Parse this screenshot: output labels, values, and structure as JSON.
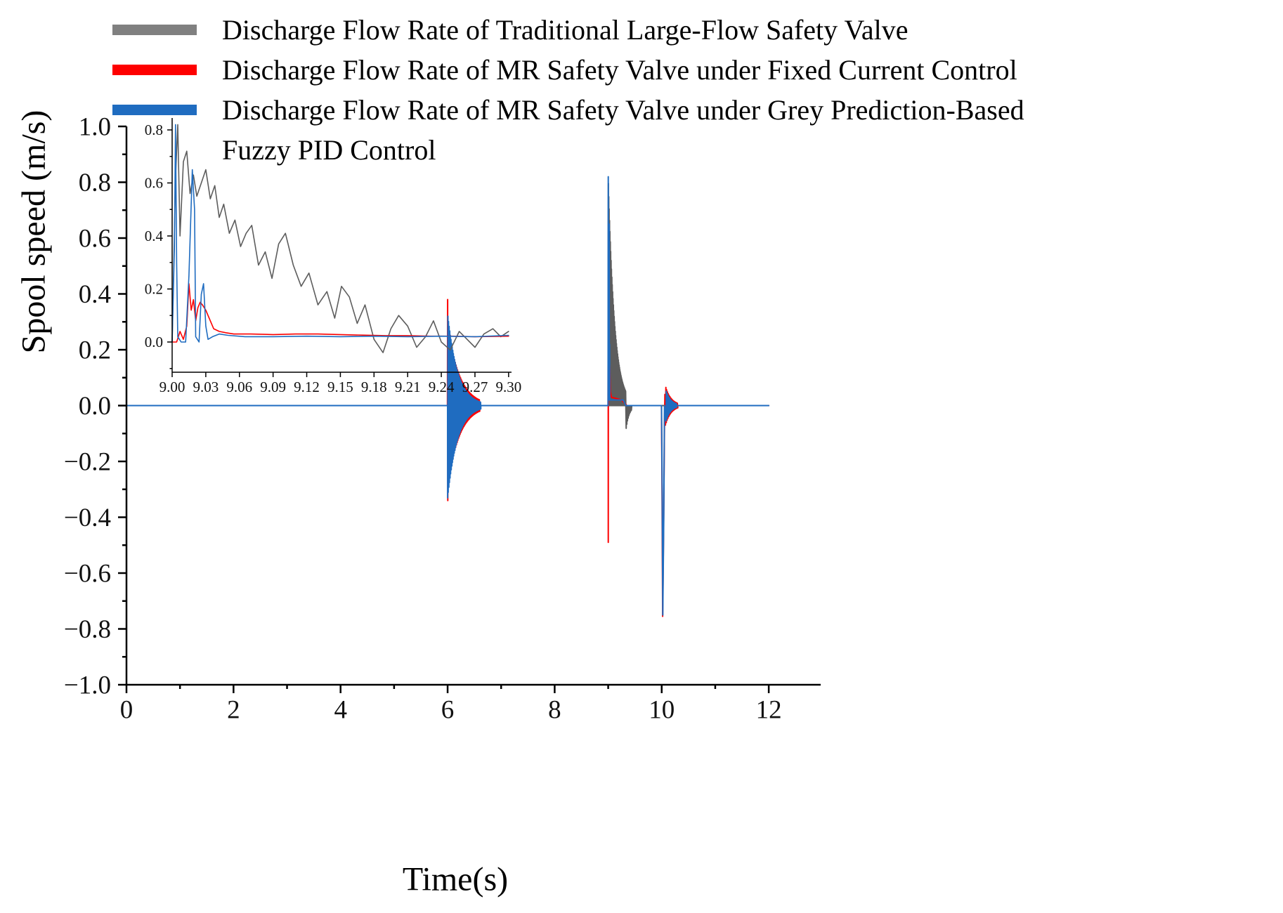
{
  "chart_data": {
    "type": "line",
    "title": "",
    "xlabel": "Time(s)",
    "ylabel": "Spool speed (m/s)",
    "legend": {
      "position": "top-left",
      "items": [
        {
          "name": "traditional-large-flow",
          "swatch_color": "#808080",
          "lines": [
            "Discharge Flow Rate of Traditional Large-Flow Safety Valve"
          ]
        },
        {
          "name": "mr-fixed-current",
          "swatch_color": "#fe0000",
          "lines": [
            "Discharge Flow Rate of MR Safety Valve under Fixed Current Control"
          ]
        },
        {
          "name": "mr-grey-fuzzy-pid",
          "swatch_color": "#1f6cc0",
          "lines": [
            "Discharge Flow Rate of MR Safety Valve under Grey Prediction-Based",
            "Fuzzy PID Control"
          ]
        }
      ]
    },
    "main": {
      "xlim": [
        0,
        12.97
      ],
      "ylim": [
        -1.0,
        1.0
      ],
      "xticks": {
        "values": [
          0,
          2,
          4,
          6,
          8,
          10,
          12
        ],
        "labels": [
          "0",
          "2",
          "4",
          "6",
          "8",
          "10",
          "12"
        ],
        "minor_step": 1
      },
      "yticks": {
        "values": [
          -1.0,
          -0.8,
          -0.6,
          -0.4,
          -0.2,
          0.0,
          0.2,
          0.4,
          0.6,
          0.8,
          1.0
        ],
        "labels": [
          "−1.0",
          "−0.8",
          "−0.6",
          "−0.4",
          "−0.2",
          "0.0",
          "0.2",
          "0.4",
          "0.6",
          "0.8",
          "1.0"
        ],
        "minor_step": 0.1
      },
      "series": [
        {
          "name": "traditional-large-flow",
          "color": "#5d5d5d",
          "width": 2,
          "segments": [
            {
              "type": "points",
              "pts": [
                [
                  0,
                  0
                ],
                [
                  8.997,
                  0
                ]
              ]
            },
            {
              "type": "osc",
              "t0": 9.0,
              "t1": 9.33,
              "amp0": 0.82,
              "amp1": 0.05,
              "cycles": 46,
              "mode": "pos"
            },
            {
              "type": "osc",
              "t0": 9.33,
              "t1": 9.44,
              "amp0": 0.09,
              "amp1": 0.015,
              "cycles": 9,
              "mode": "neg"
            },
            {
              "type": "points",
              "pts": [
                [
                  9.44,
                  0
                ],
                [
                  12,
                  0
                ]
              ]
            }
          ]
        },
        {
          "name": "mr-fixed-current",
          "color": "#fe0000",
          "width": 2,
          "segments": [
            {
              "type": "points",
              "pts": [
                [
                  0,
                  0
                ],
                [
                  5.997,
                  0
                ],
                [
                  6.0,
                  0.38
                ],
                [
                  6.003,
                  -0.34
                ],
                [
                  6.007,
                  0.3
                ]
              ]
            },
            {
              "type": "osc",
              "t0": 6.01,
              "t1": 6.6,
              "amp0": 0.28,
              "amp1": 0.02,
              "cycles": 42,
              "mode": "sym"
            },
            {
              "type": "points",
              "pts": [
                [
                  6.6,
                  0
                ],
                [
                  8.997,
                  0
                ],
                [
                  9.0,
                  0.3
                ],
                [
                  9.001,
                  -0.49
                ],
                [
                  9.003,
                  0
                ],
                [
                  9.013,
                  0.05
                ],
                [
                  9.016,
                  0.22
                ],
                [
                  9.02,
                  0.1
                ],
                [
                  9.025,
                  0.15
                ],
                [
                  9.03,
                  0.13
                ],
                [
                  9.04,
                  0.05
                ],
                [
                  9.06,
                  0.03
                ],
                [
                  9.25,
                  0.02
                ],
                [
                  9.3,
                  0.01
                ],
                [
                  9.35,
                  0
                ],
                [
                  9.995,
                  0
                ],
                [
                  10.005,
                  -0.25
                ],
                [
                  10.018,
                  -0.755
                ],
                [
                  10.035,
                  -0.45
                ],
                [
                  10.05,
                  -0.1
                ],
                [
                  10.06,
                  0.04
                ]
              ]
            },
            {
              "type": "osc",
              "t0": 10.07,
              "t1": 10.3,
              "amp0": 0.07,
              "amp1": 0.008,
              "cycles": 15,
              "mode": "sym"
            },
            {
              "type": "points",
              "pts": [
                [
                  10.3,
                  0
                ],
                [
                  12,
                  0
                ]
              ]
            }
          ]
        },
        {
          "name": "mr-grey-fuzzy-pid",
          "color": "#1f6cc0",
          "width": 2,
          "segments": [
            {
              "type": "points",
              "pts": [
                [
                  0,
                  0
                ],
                [
                  5.999,
                  0
                ]
              ]
            },
            {
              "type": "osc",
              "t0": 6.0,
              "t1": 6.62,
              "amp0": 0.33,
              "amp1": 0.012,
              "cycles": 55,
              "mode": "sym"
            },
            {
              "type": "points",
              "pts": [
                [
                  6.62,
                  0
                ],
                [
                  8.998,
                  0
                ],
                [
                  9.002,
                  0.82
                ],
                [
                  9.004,
                  0.02
                ],
                [
                  9.015,
                  0.02
                ],
                [
                  9.018,
                  0.65
                ],
                [
                  9.021,
                  0.02
                ],
                [
                  9.026,
                  0.22
                ],
                [
                  9.03,
                  0.02
                ],
                [
                  9.28,
                  0.02
                ],
                [
                  9.33,
                  0
                ],
                [
                  9.996,
                  0
                ],
                [
                  10.008,
                  -0.3
                ],
                [
                  10.02,
                  -0.75
                ],
                [
                  10.038,
                  -0.4
                ],
                [
                  10.052,
                  0
                ]
              ]
            },
            {
              "type": "osc",
              "t0": 10.08,
              "t1": 10.28,
              "amp0": 0.055,
              "amp1": 0.006,
              "cycles": 16,
              "mode": "sym"
            },
            {
              "type": "points",
              "pts": [
                [
                  10.28,
                  0
                ],
                [
                  12,
                  0
                ]
              ]
            }
          ]
        }
      ]
    },
    "inset": {
      "xlim": [
        9.0,
        9.3026
      ],
      "ylim": [
        -0.114,
        0.845
      ],
      "xticks": {
        "values": [
          9.0,
          9.03,
          9.06,
          9.09,
          9.12,
          9.15,
          9.18,
          9.21,
          9.24,
          9.27,
          9.3
        ],
        "labels": [
          "9.00",
          "9.03",
          "9.06",
          "9.09",
          "9.12",
          "9.15",
          "9.18",
          "9.21",
          "9.24",
          "9.27",
          "9.30"
        ],
        "minor_step": 0
      },
      "yticks": {
        "values": [
          0.0,
          0.2,
          0.4,
          0.6,
          0.8
        ],
        "labels": [
          "0.0",
          "0.2",
          "0.4",
          "0.6",
          "0.8"
        ],
        "minor_step": 0.1
      },
      "series": [
        {
          "name": "traditional-large-flow",
          "color": "#5d5d5d",
          "width": 1.6,
          "segments": [
            {
              "type": "points",
              "pts": [
                [
                  9.0,
                  0.0
                ],
                [
                  9.003,
                  0.62
                ],
                [
                  9.005,
                  0.82
                ],
                [
                  9.007,
                  0.4
                ],
                [
                  9.01,
                  0.68
                ],
                [
                  9.013,
                  0.72
                ],
                [
                  9.016,
                  0.56
                ],
                [
                  9.019,
                  0.63
                ],
                [
                  9.022,
                  0.55
                ],
                [
                  9.026,
                  0.6
                ],
                [
                  9.03,
                  0.65
                ],
                [
                  9.034,
                  0.54
                ],
                [
                  9.038,
                  0.59
                ],
                [
                  9.042,
                  0.47
                ],
                [
                  9.046,
                  0.52
                ],
                [
                  9.051,
                  0.41
                ],
                [
                  9.056,
                  0.46
                ],
                [
                  9.061,
                  0.36
                ],
                [
                  9.066,
                  0.41
                ],
                [
                  9.071,
                  0.44
                ],
                [
                  9.077,
                  0.29
                ],
                [
                  9.083,
                  0.34
                ],
                [
                  9.089,
                  0.24
                ],
                [
                  9.095,
                  0.37
                ],
                [
                  9.101,
                  0.41
                ],
                [
                  9.108,
                  0.29
                ],
                [
                  9.115,
                  0.21
                ],
                [
                  9.122,
                  0.26
                ],
                [
                  9.13,
                  0.14
                ],
                [
                  9.138,
                  0.19
                ],
                [
                  9.145,
                  0.09
                ],
                [
                  9.151,
                  0.21
                ],
                [
                  9.158,
                  0.17
                ],
                [
                  9.165,
                  0.07
                ],
                [
                  9.172,
                  0.14
                ],
                [
                  9.18,
                  0.01
                ],
                [
                  9.188,
                  -0.04
                ],
                [
                  9.195,
                  0.05
                ],
                [
                  9.202,
                  0.1
                ],
                [
                  9.21,
                  0.06
                ],
                [
                  9.218,
                  -0.02
                ],
                [
                  9.226,
                  0.02
                ],
                [
                  9.233,
                  0.08
                ],
                [
                  9.24,
                  0.0
                ],
                [
                  9.248,
                  -0.03
                ],
                [
                  9.256,
                  0.04
                ],
                [
                  9.263,
                  0.01
                ],
                [
                  9.27,
                  -0.02
                ],
                [
                  9.278,
                  0.03
                ],
                [
                  9.286,
                  0.05
                ],
                [
                  9.293,
                  0.02
                ],
                [
                  9.3,
                  0.04
                ]
              ]
            }
          ]
        },
        {
          "name": "mr-fixed-current",
          "color": "#fe0000",
          "width": 1.6,
          "segments": [
            {
              "type": "points",
              "pts": [
                [
                  9.0,
                  0.0
                ],
                [
                  9.004,
                  0.0
                ],
                [
                  9.007,
                  0.04
                ],
                [
                  9.01,
                  0.01
                ],
                [
                  9.013,
                  0.06
                ],
                [
                  9.015,
                  0.22
                ],
                [
                  9.017,
                  0.12
                ],
                [
                  9.019,
                  0.16
                ],
                [
                  9.021,
                  0.08
                ],
                [
                  9.023,
                  0.13
                ],
                [
                  9.025,
                  0.15
                ],
                [
                  9.027,
                  0.14
                ],
                [
                  9.03,
                  0.12
                ],
                [
                  9.033,
                  0.09
                ],
                [
                  9.037,
                  0.05
                ],
                [
                  9.042,
                  0.04
                ],
                [
                  9.048,
                  0.035
                ],
                [
                  9.055,
                  0.03
                ],
                [
                  9.07,
                  0.03
                ],
                [
                  9.09,
                  0.028
                ],
                [
                  9.11,
                  0.03
                ],
                [
                  9.13,
                  0.03
                ],
                [
                  9.15,
                  0.028
                ],
                [
                  9.17,
                  0.026
                ],
                [
                  9.19,
                  0.024
                ],
                [
                  9.21,
                  0.024
                ],
                [
                  9.23,
                  0.022
                ],
                [
                  9.25,
                  0.022
                ],
                [
                  9.27,
                  0.02
                ],
                [
                  9.3,
                  0.022
                ]
              ]
            }
          ]
        },
        {
          "name": "mr-grey-fuzzy-pid",
          "color": "#1f6cc0",
          "width": 1.6,
          "segments": [
            {
              "type": "points",
              "pts": [
                [
                  9.0,
                  0.0
                ],
                [
                  9.002,
                  0.35
                ],
                [
                  9.003,
                  0.82
                ],
                [
                  9.004,
                  0.3
                ],
                [
                  9.005,
                  0.02
                ],
                [
                  9.008,
                  0.0
                ],
                [
                  9.012,
                  0.0
                ],
                [
                  9.015,
                  0.25
                ],
                [
                  9.018,
                  0.65
                ],
                [
                  9.02,
                  0.5
                ],
                [
                  9.021,
                  0.02
                ],
                [
                  9.024,
                  0.0
                ],
                [
                  9.026,
                  0.18
                ],
                [
                  9.028,
                  0.22
                ],
                [
                  9.03,
                  0.06
                ],
                [
                  9.032,
                  0.01
                ],
                [
                  9.036,
                  0.02
                ],
                [
                  9.042,
                  0.03
                ],
                [
                  9.05,
                  0.025
                ],
                [
                  9.065,
                  0.02
                ],
                [
                  9.09,
                  0.02
                ],
                [
                  9.12,
                  0.022
                ],
                [
                  9.15,
                  0.02
                ],
                [
                  9.18,
                  0.022
                ],
                [
                  9.21,
                  0.02
                ],
                [
                  9.24,
                  0.022
                ],
                [
                  9.27,
                  0.02
                ],
                [
                  9.3,
                  0.025
                ]
              ]
            }
          ]
        }
      ]
    }
  }
}
